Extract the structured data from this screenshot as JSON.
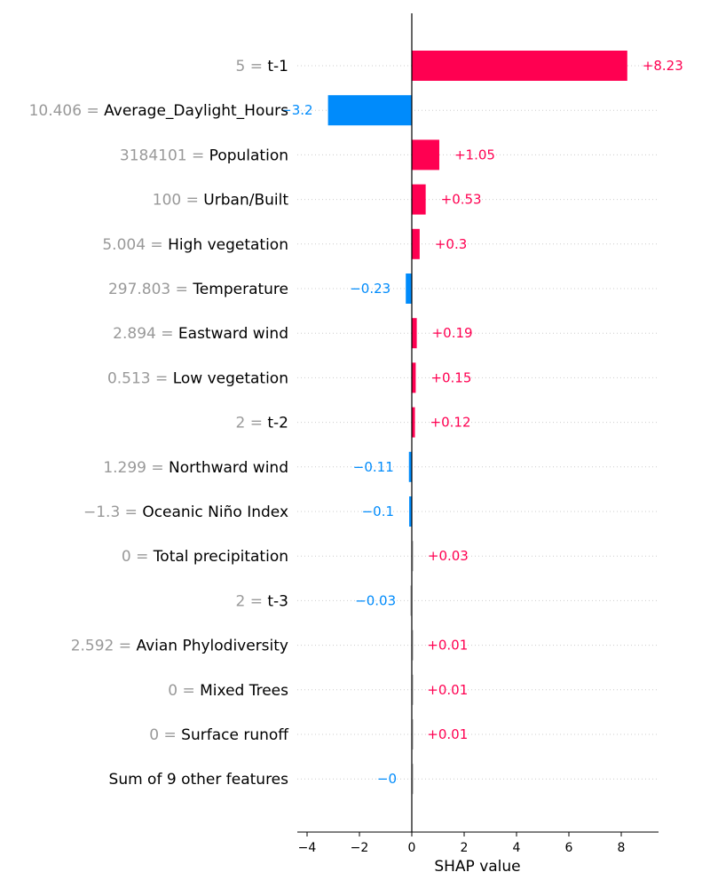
{
  "chart_data": {
    "type": "bar",
    "orientation": "horizontal",
    "xlabel": "SHAP value",
    "xlim": [
      -4.3,
      9.4
    ],
    "xticks": [
      -4,
      -2,
      0,
      2,
      4,
      6,
      8
    ],
    "xtick_labels": [
      "−4",
      "−2",
      "0",
      "2",
      "4",
      "6",
      "8"
    ],
    "grid": "dotted horizontal row lines",
    "colors": {
      "positive": "#ff0051",
      "negative": "#008bfb",
      "negligible": "#cccccc"
    },
    "rows": [
      {
        "feature_value": "5",
        "feature": "t-1",
        "value": 8.23,
        "label": "+8.23"
      },
      {
        "feature_value": "10.406",
        "feature": "Average_Daylight_Hours",
        "value": -3.2,
        "label": "−3.2"
      },
      {
        "feature_value": "3184101",
        "feature": "Population",
        "value": 1.05,
        "label": "+1.05"
      },
      {
        "feature_value": "100",
        "feature": "Urban/Built",
        "value": 0.53,
        "label": "+0.53"
      },
      {
        "feature_value": "5.004",
        "feature": "High vegetation",
        "value": 0.3,
        "label": "+0.3"
      },
      {
        "feature_value": "297.803",
        "feature": "Temperature",
        "value": -0.23,
        "label": "−0.23"
      },
      {
        "feature_value": "2.894",
        "feature": "Eastward wind",
        "value": 0.19,
        "label": "+0.19"
      },
      {
        "feature_value": "0.513",
        "feature": "Low vegetation",
        "value": 0.15,
        "label": "+0.15"
      },
      {
        "feature_value": "2",
        "feature": "t-2",
        "value": 0.12,
        "label": "+0.12"
      },
      {
        "feature_value": "1.299",
        "feature": "Northward wind",
        "value": -0.11,
        "label": "−0.11"
      },
      {
        "feature_value": "−1.3",
        "feature": "Oceanic Niño Index",
        "value": -0.1,
        "label": "−0.1"
      },
      {
        "feature_value": "0",
        "feature": "Total precipitation",
        "value": 0.03,
        "label": "+0.03"
      },
      {
        "feature_value": "2",
        "feature": "t-3",
        "value": -0.03,
        "label": "−0.03"
      },
      {
        "feature_value": "2.592",
        "feature": "Avian Phylodiversity",
        "value": 0.01,
        "label": "+0.01"
      },
      {
        "feature_value": "0",
        "feature": "Mixed Trees",
        "value": 0.01,
        "label": "+0.01"
      },
      {
        "feature_value": "0",
        "feature": "Surface runoff",
        "value": 0.01,
        "label": "+0.01"
      },
      {
        "feature_value": "",
        "feature": "Sum of 9 other features",
        "value": -0.0,
        "label": "−0"
      }
    ]
  }
}
